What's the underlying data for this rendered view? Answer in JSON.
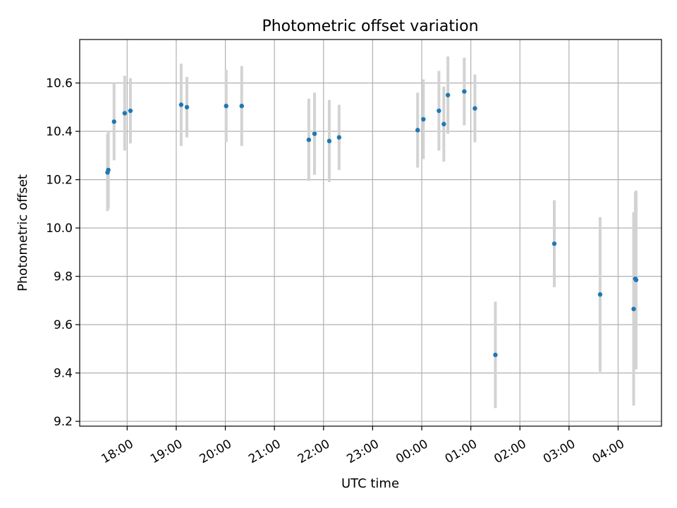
{
  "chart_data": {
    "type": "scatter",
    "title": "Photometric offset variation",
    "xlabel": "UTC time",
    "ylabel": "Photometric offset",
    "xlim": [
      "2000-01-01T17:02",
      "2000-01-02T04:53"
    ],
    "ylim": [
      9.18,
      10.78
    ],
    "x_ticks": [
      {
        "time": "2000-01-01T18:00",
        "label": "18:00"
      },
      {
        "time": "2000-01-01T19:00",
        "label": "19:00"
      },
      {
        "time": "2000-01-01T20:00",
        "label": "20:00"
      },
      {
        "time": "2000-01-01T21:00",
        "label": "21:00"
      },
      {
        "time": "2000-01-01T22:00",
        "label": "22:00"
      },
      {
        "time": "2000-01-01T23:00",
        "label": "23:00"
      },
      {
        "time": "2000-01-02T00:00",
        "label": "00:00"
      },
      {
        "time": "2000-01-02T01:00",
        "label": "01:00"
      },
      {
        "time": "2000-01-02T02:00",
        "label": "02:00"
      },
      {
        "time": "2000-01-02T03:00",
        "label": "03:00"
      },
      {
        "time": "2000-01-02T04:00",
        "label": "04:00"
      }
    ],
    "y_ticks": [
      {
        "value": 9.2,
        "label": "9.2"
      },
      {
        "value": 9.4,
        "label": "9.4"
      },
      {
        "value": 9.6,
        "label": "9.6"
      },
      {
        "value": 9.8,
        "label": "9.8"
      },
      {
        "value": 10.0,
        "label": "10.0"
      },
      {
        "value": 10.2,
        "label": "10.2"
      },
      {
        "value": 10.4,
        "label": "10.4"
      },
      {
        "value": 10.6,
        "label": "10.6"
      }
    ],
    "grid": true,
    "marker_color": "#1f77b4",
    "errorbar_color": "#d3d3d3",
    "points": [
      {
        "x": "2000-01-01T17:36",
        "y": 10.23,
        "yerr": 0.16
      },
      {
        "x": "2000-01-01T17:37",
        "y": 10.24,
        "yerr": 0.16
      },
      {
        "x": "2000-01-01T17:44",
        "y": 10.44,
        "yerr": 0.16
      },
      {
        "x": "2000-01-01T17:57",
        "y": 10.475,
        "yerr": 0.155
      },
      {
        "x": "2000-01-01T18:04",
        "y": 10.485,
        "yerr": 0.135
      },
      {
        "x": "2000-01-01T19:06",
        "y": 10.51,
        "yerr": 0.17
      },
      {
        "x": "2000-01-01T19:13",
        "y": 10.5,
        "yerr": 0.125
      },
      {
        "x": "2000-01-01T20:01",
        "y": 10.505,
        "yerr": 0.15
      },
      {
        "x": "2000-01-01T20:20",
        "y": 10.505,
        "yerr": 0.165
      },
      {
        "x": "2000-01-01T21:42",
        "y": 10.365,
        "yerr": 0.17
      },
      {
        "x": "2000-01-01T21:49",
        "y": 10.39,
        "yerr": 0.17
      },
      {
        "x": "2000-01-01T22:07",
        "y": 10.36,
        "yerr": 0.17
      },
      {
        "x": "2000-01-01T22:19",
        "y": 10.375,
        "yerr": 0.135
      },
      {
        "x": "2000-01-01T23:55",
        "y": 10.405,
        "yerr": 0.155
      },
      {
        "x": "2000-01-02T00:02",
        "y": 10.45,
        "yerr": 0.165
      },
      {
        "x": "2000-01-02T00:21",
        "y": 10.485,
        "yerr": 0.165
      },
      {
        "x": "2000-01-02T00:27",
        "y": 10.43,
        "yerr": 0.155
      },
      {
        "x": "2000-01-02T00:32",
        "y": 10.55,
        "yerr": 0.16
      },
      {
        "x": "2000-01-02T00:52",
        "y": 10.565,
        "yerr": 0.14
      },
      {
        "x": "2000-01-02T01:05",
        "y": 10.495,
        "yerr": 0.14
      },
      {
        "x": "2000-01-02T01:30",
        "y": 9.475,
        "yerr": 0.22
      },
      {
        "x": "2000-01-02T02:42",
        "y": 9.935,
        "yerr": 0.18
      },
      {
        "x": "2000-01-02T03:38",
        "y": 9.725,
        "yerr": 0.32
      },
      {
        "x": "2000-01-02T04:19",
        "y": 9.665,
        "yerr": 0.4
      },
      {
        "x": "2000-01-02T04:21",
        "y": 9.79,
        "yerr": 0.36
      },
      {
        "x": "2000-01-02T04:22",
        "y": 9.785,
        "yerr": 0.37
      }
    ]
  }
}
